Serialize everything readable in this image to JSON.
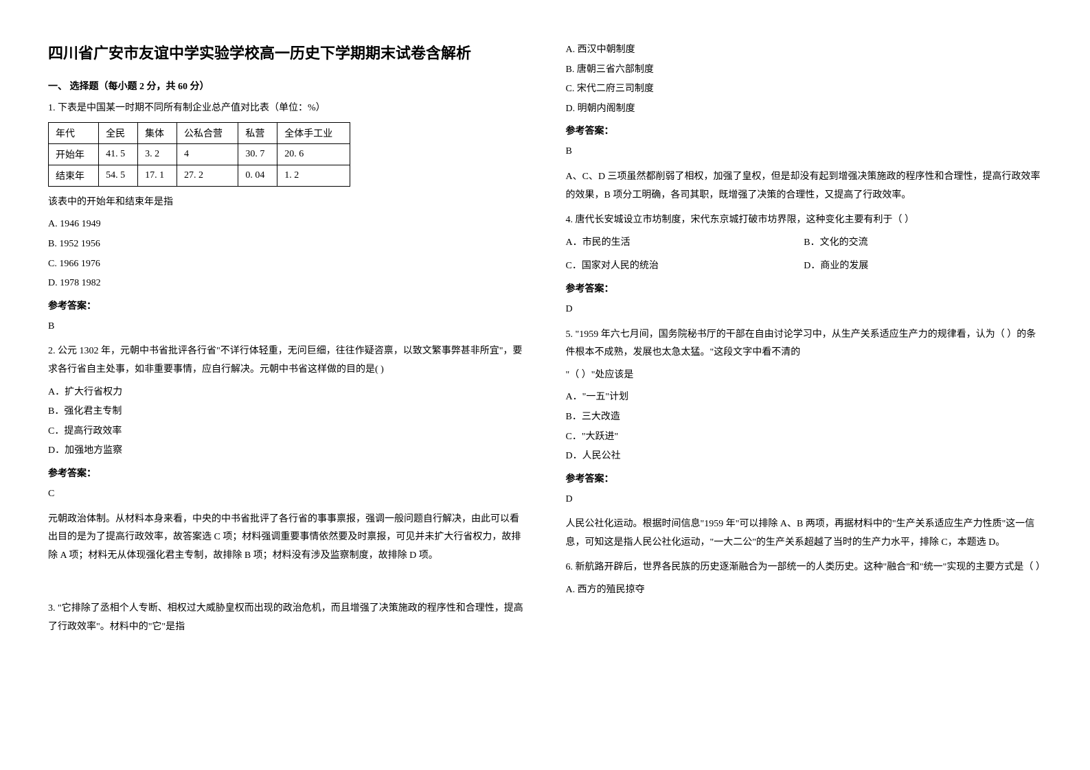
{
  "title": "四川省广安市友谊中学实验学校高一历史下学期期末试卷含解析",
  "section1_header": "一、 选择题（每小题 2 分，共 60 分）",
  "answer_label": "参考答案：",
  "q1": {
    "stem": "1. 下表是中国某一时期不同所有制企业总产值对比表（单位：%）",
    "table": {
      "headers": [
        "年代",
        "全民",
        "集体",
        "公私合营",
        "私营",
        "全体手工业"
      ],
      "rows": [
        [
          "开始年",
          "41. 5",
          "3. 2",
          "4",
          "30. 7",
          "20. 6"
        ],
        [
          "结束年",
          "54. 5",
          "17. 1",
          "27. 2",
          "0. 04",
          "1. 2"
        ]
      ]
    },
    "sub": "该表中的开始年和结束年是指",
    "options": {
      "A": "A. 1946   1949",
      "B": "B. 1952   1956",
      "C": "C. 1966   1976",
      "D": "D. 1978   1982"
    },
    "answer": "B"
  },
  "q2": {
    "stem": "2. 公元 1302 年，元朝中书省批评各行省\"不详行体轻重，无问巨细，往往作疑咨禀，以致文繁事弊甚非所宜\"，要求各行省自主处事，如非重要事情，应自行解决。元朝中书省这样做的目的是(    )",
    "options": {
      "A": "A．扩大行省权力",
      "B": "B．强化君主专制",
      "C": "C．提高行政效率",
      "D": "D．加强地方监察"
    },
    "answer": "C",
    "explanation": "元朝政治体制。从材料本身来看，中央的中书省批评了各行省的事事禀报，强调一般问题自行解决，由此可以看出目的是为了提高行政效率，故答案选 C 项；材料强调重要事情依然要及时禀报，可见并未扩大行省权力，故排除 A 项；材料无从体现强化君主专制，故排除 B 项；材料没有涉及监察制度，故排除 D 项。"
  },
  "q3": {
    "stem": "3. \"它排除了丞相个人专断、相权过大威胁皇权而出现的政治危机，而且增强了决策施政的程序性和合理性，提高了行政效率\"。材料中的\"它\"是指",
    "options": {
      "A": "A. 西汉中朝制度",
      "B": "B. 唐朝三省六部制度",
      "C": "C. 宋代二府三司制度",
      "D": "D. 明朝内阁制度"
    },
    "answer": "B",
    "explanation": "A、C、D 三项虽然都削弱了相权，加强了皇权，但是却没有起到增强决策施政的程序性和合理性，提高行政效率的效果，B 项分工明确，各司其职，既增强了决策的合理性，又提高了行政效率。"
  },
  "q4": {
    "stem": "4. 唐代长安城设立市坊制度，宋代东京城打破市坊界限，这种变化主要有利于（        ）",
    "options": {
      "A": "A．市民的生活",
      "B": "B．文化的交流",
      "C": "C．国家对人民的统治",
      "D": "D．商业的发展"
    },
    "answer": "D"
  },
  "q5": {
    "stem1": "5. \"1959 年六七月间，国务院秘书厅的干部在自由讨论学习中，从生产关系适应生产力的规律看，认为（            ）的条件根本不成熟，发展也太急太猛。\"这段文字中看不清的",
    "stem2": "\"（          ）\"处应该是",
    "options": {
      "A": "A．\"一五\"计划",
      "B": "B．三大改造",
      "C": "C．\"大跃进\"",
      "D": "D．人民公社"
    },
    "answer": "D",
    "explanation": "人民公社化运动。根据时间信息\"1959 年\"可以排除 A、B 两项，再据材料中的\"生产关系适应生产力性质\"这一信息，可知这是指人民公社化运动，\"一大二公\"的生产关系超越了当时的生产力水平，排除 C，本题选 D。"
  },
  "q6": {
    "stem": "6. 新航路开辟后，世界各民族的历史逐渐融合为一部统一的人类历史。这种\"融合\"和\"统一\"实现的主要方式是（        ）",
    "options": {
      "A": "A. 西方的殖民掠夺"
    }
  }
}
